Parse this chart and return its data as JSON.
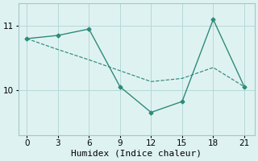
{
  "x": [
    0,
    3,
    6,
    9,
    12,
    15,
    18,
    21
  ],
  "line1_y": [
    10.8,
    10.85,
    10.95,
    10.05,
    9.65,
    9.82,
    11.1,
    10.05
  ],
  "line2_y": [
    10.8,
    10.63,
    10.47,
    10.3,
    10.13,
    10.18,
    10.35,
    10.05
  ],
  "line_color": "#2e8b7a",
  "bg_color": "#dff2f2",
  "xlabel": "Humidex (Indice chaleur)",
  "xticks": [
    0,
    3,
    6,
    9,
    12,
    15,
    18,
    21
  ],
  "yticks": [
    10,
    11
  ],
  "ylim": [
    9.3,
    11.35
  ],
  "xlim": [
    -0.8,
    22.0
  ],
  "grid_color": "#b5d8d8",
  "marker": "D",
  "markersize": 2.5,
  "linewidth": 1.0,
  "xlabel_fontsize": 8,
  "tick_fontsize": 7.5
}
